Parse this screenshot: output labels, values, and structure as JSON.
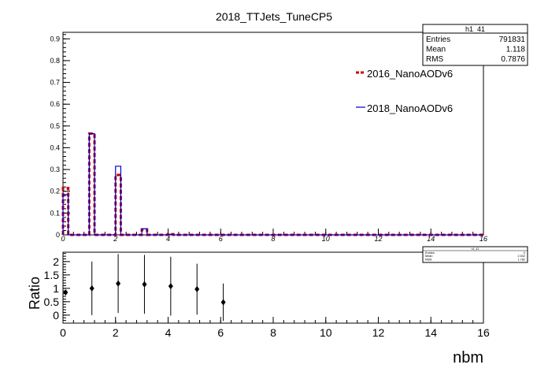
{
  "chart_data": [
    {
      "type": "step-histogram",
      "title": "2018_TTJets_TuneCP5",
      "xlim": [
        0,
        16
      ],
      "ylim": [
        0,
        0.93
      ],
      "x_ticks": [
        0,
        2,
        4,
        6,
        8,
        10,
        12,
        14,
        16
      ],
      "y_ticks": [
        0,
        0.1,
        0.2,
        0.3,
        0.4,
        0.5,
        0.6,
        0.7,
        0.8,
        0.9
      ],
      "bin_width": 0.2,
      "series": [
        {
          "name": "2016_NanoAODv6",
          "color": "#cc0000",
          "style": "dashed",
          "bins": [
            {
              "x0": 0.0,
              "value": 0.215
            },
            {
              "x0": 1.0,
              "value": 0.465
            },
            {
              "x0": 2.0,
              "value": 0.275
            },
            {
              "x0": 3.0,
              "value": 0.025
            },
            {
              "x0": 4.0,
              "value": 0.003
            }
          ]
        },
        {
          "name": "2018_NanoAODv6",
          "color": "#0000cc",
          "style": "solid",
          "bins": [
            {
              "x0": 0.0,
              "value": 0.185
            },
            {
              "x0": 1.0,
              "value": 0.465
            },
            {
              "x0": 2.0,
              "value": 0.315
            },
            {
              "x0": 3.0,
              "value": 0.028
            },
            {
              "x0": 4.0,
              "value": 0.003
            }
          ]
        }
      ],
      "stats_box": {
        "name": "h1_41",
        "rows": [
          {
            "label": "Entries",
            "value": "791831"
          },
          {
            "label": "Mean",
            "value": "1.118"
          },
          {
            "label": "RMS",
            "value": "0.7876"
          }
        ]
      }
    },
    {
      "type": "scatter-errorbars",
      "xlabel": "nbm",
      "ylabel": "Ratio",
      "xlim": [
        0,
        16
      ],
      "ylim": [
        -0.3,
        2.35
      ],
      "x_ticks": [
        0,
        2,
        4,
        6,
        8,
        10,
        12,
        14,
        16
      ],
      "y_ticks": [
        0,
        0.5,
        1,
        1.5,
        2
      ],
      "points": [
        {
          "x": 0.1,
          "y": 0.85,
          "err": 0.1
        },
        {
          "x": 1.1,
          "y": 1.0,
          "err": 1.0
        },
        {
          "x": 2.1,
          "y": 1.18,
          "err": 1.1
        },
        {
          "x": 3.1,
          "y": 1.15,
          "err": 1.1
        },
        {
          "x": 4.1,
          "y": 1.08,
          "err": 1.1
        },
        {
          "x": 5.1,
          "y": 0.97,
          "err": 0.95
        },
        {
          "x": 6.1,
          "y": 0.48,
          "err": 0.7
        }
      ],
      "stats_box": {
        "name": "h1_41",
        "rows": [
          {
            "label": "Entries",
            "value": "0"
          },
          {
            "label": "Mean",
            "value": "2.532"
          },
          {
            "label": "RMS",
            "value": "1.782"
          }
        ]
      }
    }
  ]
}
